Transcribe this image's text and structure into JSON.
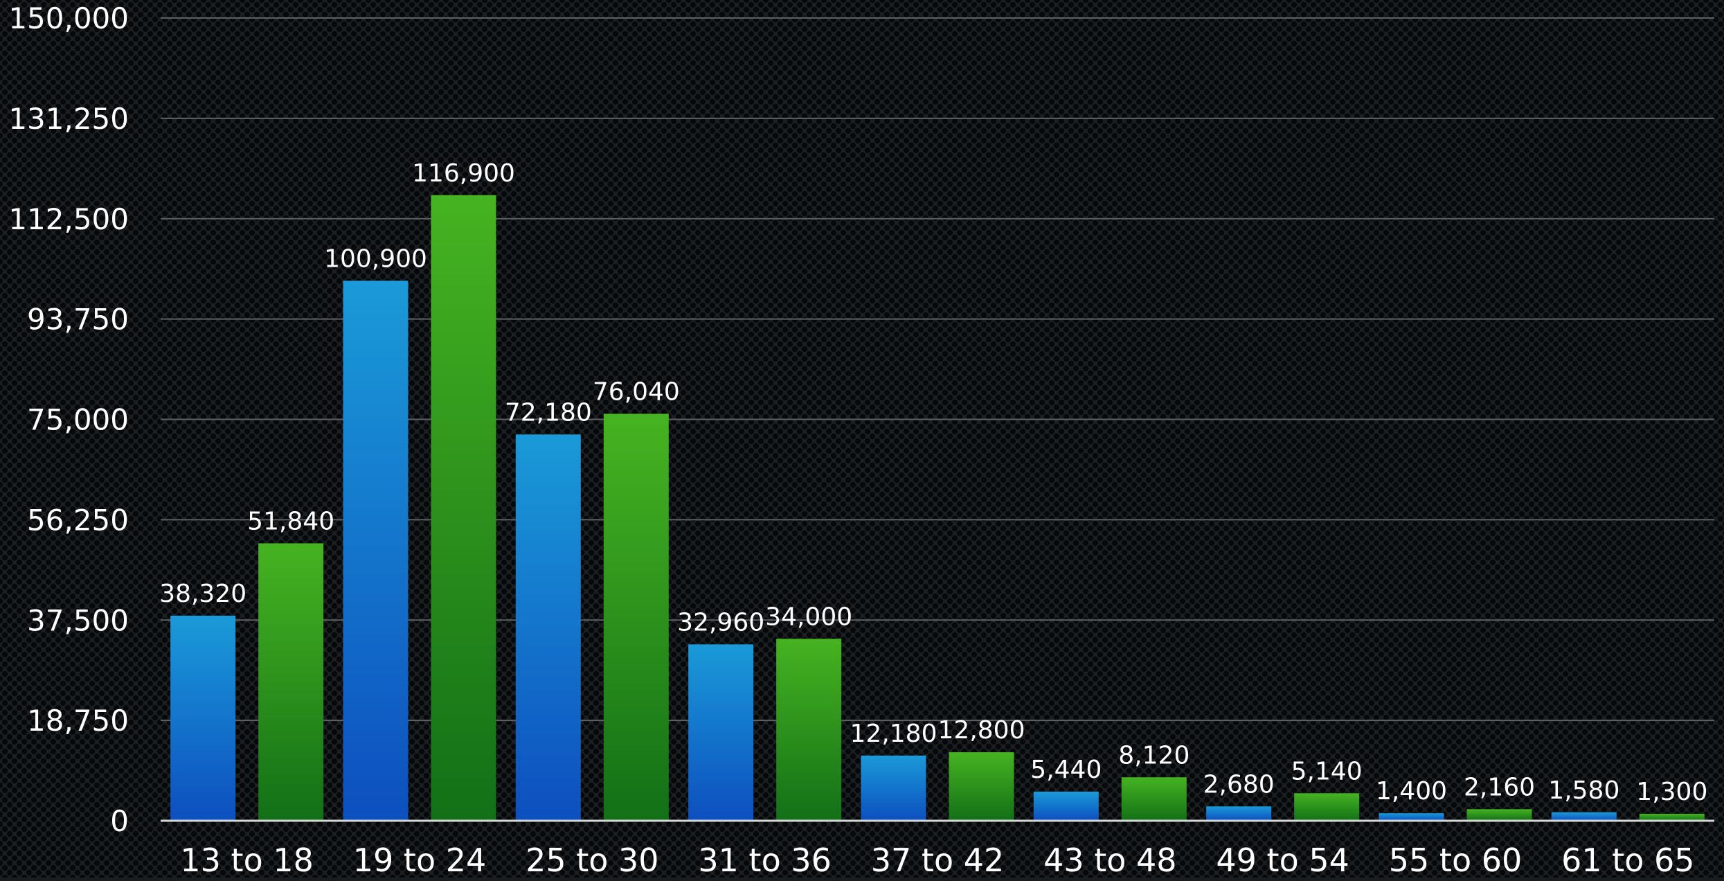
{
  "chart_data": {
    "type": "bar",
    "categories": [
      "13 to 18",
      "19 to 24",
      "25 to 30",
      "31 to 36",
      "37 to 42",
      "43 to 48",
      "49 to 54",
      "55 to 60",
      "61 to 65"
    ],
    "series": [
      {
        "color": "#1a8fd6",
        "values": [
          38320,
          100900,
          72180,
          32960,
          12180,
          5440,
          2680,
          1400,
          1580
        ],
        "labels": [
          "38,320",
          "100,900",
          "72,180",
          "32,960",
          "12,180",
          "5,440",
          "2,680",
          "1,400",
          "1,580"
        ]
      },
      {
        "color": "#3fa81f",
        "values": [
          51840,
          116900,
          76040,
          34000,
          12800,
          8120,
          5140,
          2160,
          1300
        ],
        "labels": [
          "51,840",
          "116,900",
          "76,040",
          "34,000",
          "12,800",
          "8,120",
          "5,140",
          "2,160",
          "1,300"
        ]
      }
    ],
    "y_ticks": [
      "0",
      "18,750",
      "37,500",
      "56,250",
      "75,000",
      "93,750",
      "112,500",
      "131,250",
      "150,000"
    ],
    "ylim": [
      0,
      150000
    ],
    "grid": true,
    "legend": "none",
    "title": "",
    "xlabel": "",
    "ylabel": ""
  }
}
